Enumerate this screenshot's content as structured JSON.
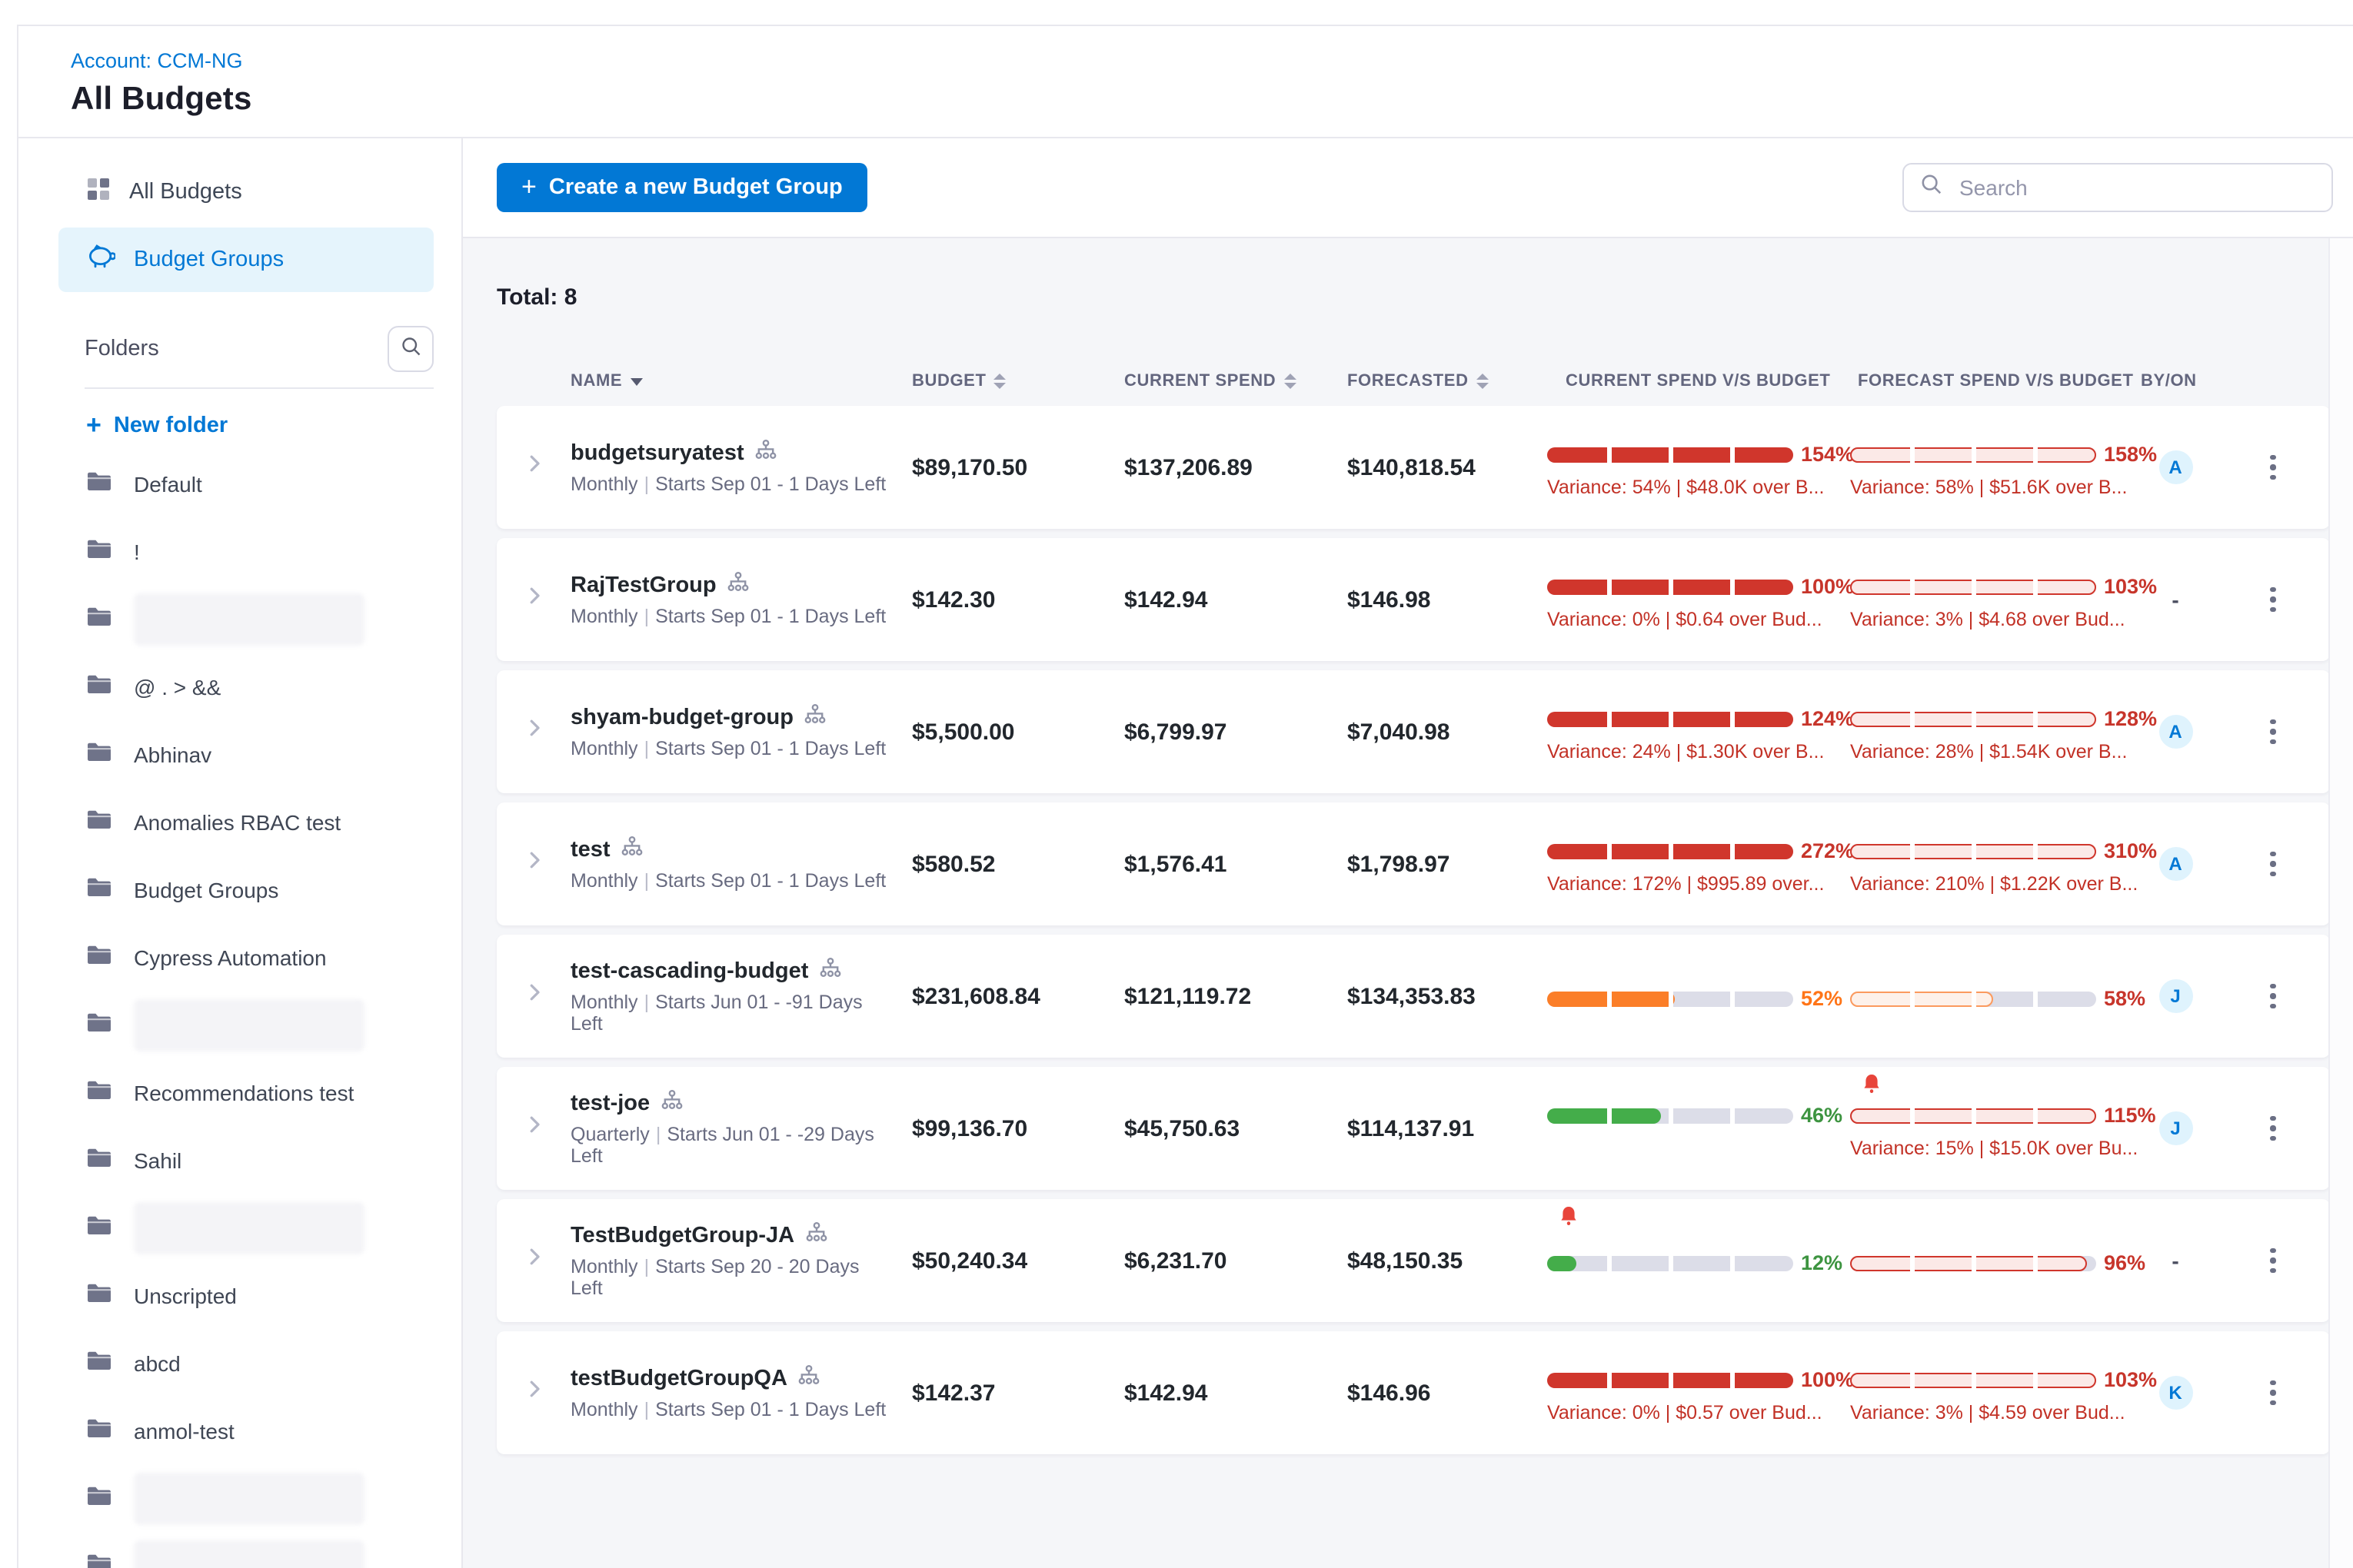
{
  "header": {
    "account_label": "Account: CCM-NG",
    "page_title": "All Budgets"
  },
  "sidebar": {
    "nav": [
      {
        "label": "All Budgets",
        "icon": "grid-icon",
        "selected": false
      },
      {
        "label": "Budget Groups",
        "icon": "piggy-bank-icon",
        "selected": true
      }
    ],
    "folders_title": "Folders",
    "folder_search_icon": "search-icon",
    "new_folder_label": "New folder",
    "folders": [
      {
        "name": "Default"
      },
      {
        "name": "!"
      },
      {
        "name": "",
        "redacted": true
      },
      {
        "name": "@ . > &&"
      },
      {
        "name": "Abhinav"
      },
      {
        "name": "Anomalies RBAC test"
      },
      {
        "name": "Budget Groups"
      },
      {
        "name": "Cypress Automation"
      },
      {
        "name": "",
        "redacted": true
      },
      {
        "name": "Recommendations test"
      },
      {
        "name": "Sahil"
      },
      {
        "name": "",
        "redacted": true
      },
      {
        "name": "Unscripted"
      },
      {
        "name": "abcd"
      },
      {
        "name": "anmol-test"
      },
      {
        "name": "",
        "redacted": true
      },
      {
        "name": "",
        "redacted": true,
        "partial": true
      }
    ]
  },
  "toolbar": {
    "create_button": "Create a new Budget Group",
    "search_placeholder": "Search"
  },
  "table": {
    "total_label": "Total: 8",
    "columns": [
      "NAME",
      "BUDGET",
      "CURRENT SPEND",
      "FORECASTED",
      "CURRENT SPEND V/S BUDGET",
      "FORECAST SPEND V/S BUDGET",
      "BY/ON"
    ],
    "rows": [
      {
        "name": "budgetsuryatest",
        "period": "Monthly",
        "schedule": "Starts Sep 01 - 1 Days Left",
        "budget": "$89,170.50",
        "current_spend": "$137,206.89",
        "forecasted": "$140,818.54",
        "current": {
          "pct": "154%",
          "fill": 100,
          "style": "solid",
          "color": "red",
          "pct_color": "red",
          "variance": "Variance: 54% | $48.0K over B...",
          "bell": false
        },
        "forecast": {
          "pct": "158%",
          "fill": 100,
          "style": "outline",
          "color": "red",
          "pct_color": "red",
          "variance": "Variance: 58% | $51.6K over B...",
          "bell": false
        },
        "by_on": "A"
      },
      {
        "name": "RajTestGroup",
        "period": "Monthly",
        "schedule": "Starts Sep 01 - 1 Days Left",
        "budget": "$142.30",
        "current_spend": "$142.94",
        "forecasted": "$146.98",
        "current": {
          "pct": "100%",
          "fill": 100,
          "style": "solid",
          "color": "red",
          "pct_color": "red",
          "variance": "Variance: 0% | $0.64 over Bud...",
          "bell": false
        },
        "forecast": {
          "pct": "103%",
          "fill": 100,
          "style": "outline",
          "color": "red",
          "pct_color": "red",
          "variance": "Variance: 3% | $4.68 over Bud...",
          "bell": false
        },
        "by_on": "-"
      },
      {
        "name": "shyam-budget-group",
        "period": "Monthly",
        "schedule": "Starts Sep 01 - 1 Days Left",
        "budget": "$5,500.00",
        "current_spend": "$6,799.97",
        "forecasted": "$7,040.98",
        "current": {
          "pct": "124%",
          "fill": 100,
          "style": "solid",
          "color": "red",
          "pct_color": "red",
          "variance": "Variance: 24% | $1.30K over B...",
          "bell": false
        },
        "forecast": {
          "pct": "128%",
          "fill": 100,
          "style": "outline",
          "color": "red",
          "pct_color": "red",
          "variance": "Variance: 28% | $1.54K over B...",
          "bell": false
        },
        "by_on": "A"
      },
      {
        "name": "test",
        "period": "Monthly",
        "schedule": "Starts Sep 01 - 1 Days Left",
        "budget": "$580.52",
        "current_spend": "$1,576.41",
        "forecasted": "$1,798.97",
        "current": {
          "pct": "272%",
          "fill": 100,
          "style": "solid",
          "color": "red",
          "pct_color": "red",
          "variance": "Variance: 172% | $995.89 over...",
          "bell": false
        },
        "forecast": {
          "pct": "310%",
          "fill": 100,
          "style": "outline",
          "color": "red",
          "pct_color": "red",
          "variance": "Variance: 210% | $1.22K over B...",
          "bell": false
        },
        "by_on": "A"
      },
      {
        "name": "test-cascading-budget",
        "period": "Monthly",
        "schedule": "Starts Jun 01 - -91 Days Left",
        "budget": "$231,608.84",
        "current_spend": "$121,119.72",
        "forecasted": "$134,353.83",
        "current": {
          "pct": "52%",
          "fill": 52,
          "style": "solid",
          "color": "orange",
          "pct_color": "orange",
          "variance": null,
          "bell": false
        },
        "forecast": {
          "pct": "58%",
          "fill": 58,
          "style": "outline",
          "color": "orange",
          "pct_color": "red",
          "variance": null,
          "bell": false
        },
        "by_on": "J"
      },
      {
        "name": "test-joe",
        "period": "Quarterly",
        "schedule": "Starts Jun 01 - -29 Days Left",
        "budget": "$99,136.70",
        "current_spend": "$45,750.63",
        "forecasted": "$114,137.91",
        "current": {
          "pct": "46%",
          "fill": 46,
          "style": "solid",
          "color": "green",
          "pct_color": "green",
          "variance": null,
          "bell": false
        },
        "forecast": {
          "pct": "115%",
          "fill": 100,
          "style": "outline",
          "color": "red",
          "pct_color": "red",
          "variance": "Variance: 15% | $15.0K over Bu...",
          "bell": true
        },
        "by_on": "J"
      },
      {
        "name": "TestBudgetGroup-JA",
        "period": "Monthly",
        "schedule": "Starts Sep 20 - 20 Days Left",
        "budget": "$50,240.34",
        "current_spend": "$6,231.70",
        "forecasted": "$48,150.35",
        "current": {
          "pct": "12%",
          "fill": 12,
          "style": "solid",
          "color": "green",
          "pct_color": "green",
          "variance": null,
          "bell": true
        },
        "forecast": {
          "pct": "96%",
          "fill": 96,
          "style": "outline",
          "color": "red",
          "pct_color": "red",
          "variance": null,
          "bell": false
        },
        "by_on": "-"
      },
      {
        "name": "testBudgetGroupQA",
        "period": "Monthly",
        "schedule": "Starts Sep 01 - 1 Days Left",
        "budget": "$142.37",
        "current_spend": "$142.94",
        "forecasted": "$146.96",
        "current": {
          "pct": "100%",
          "fill": 100,
          "style": "solid",
          "color": "red",
          "pct_color": "red",
          "variance": "Variance: 0% | $0.57 over Bud...",
          "bell": false
        },
        "forecast": {
          "pct": "103%",
          "fill": 100,
          "style": "outline",
          "color": "red",
          "pct_color": "red",
          "variance": "Variance: 3% | $4.59 over Bud...",
          "bell": false
        },
        "by_on": "K"
      }
    ]
  },
  "colors": {
    "accent_blue": "#0278d5",
    "bar_red": "#d0362c",
    "bar_red_outline_fill": "#fbe9e7",
    "bar_orange": "#fb7e28",
    "bar_orange_outline_border": "#fb9a5e",
    "bar_orange_outline_fill": "#fdf1ea",
    "bar_green": "#44ad4a",
    "track_gray": "#dcdde8",
    "pct_red": "#c7352b",
    "pct_orange": "#ff7518",
    "pct_green": "#3d9440",
    "variance_red": "#c23126",
    "selected_nav_bg": "#e5f4fc",
    "content_bg": "#f5f6f9"
  }
}
